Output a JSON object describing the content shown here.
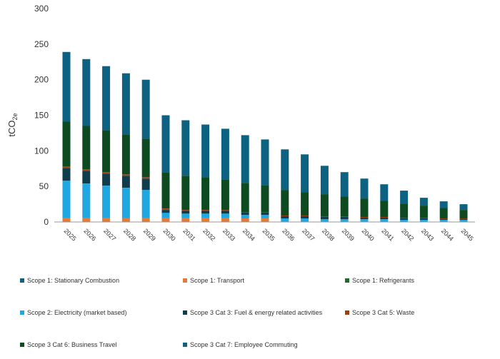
{
  "chart_data": {
    "type": "bar",
    "stacked": true,
    "ylabel": "tCO2e",
    "ylabel_main": "tCO",
    "ylabel_sub": "2e",
    "ylim": [
      0,
      300
    ],
    "yticks": [
      0,
      50,
      100,
      150,
      200,
      250,
      300
    ],
    "grid": false,
    "legend_position": "bottom",
    "categories": [
      "2025",
      "2026",
      "2027",
      "2028",
      "2029",
      "2030",
      "2031",
      "2032",
      "2033",
      "2034",
      "2035",
      "2036",
      "2037",
      "2038",
      "2039",
      "2040",
      "2041",
      "2042",
      "2043",
      "2044",
      "2045"
    ],
    "series": [
      {
        "name": "Scope 1: Transport",
        "color": "#e07b39",
        "values": [
          6,
          6,
          6,
          6,
          6,
          6,
          6,
          6,
          6,
          5,
          5,
          0,
          0,
          0,
          0,
          0,
          0,
          0,
          0,
          0,
          0
        ]
      },
      {
        "name": "Scope 2: Electricity (market based)",
        "color": "#1ea7e1",
        "values": [
          52,
          48,
          45,
          42,
          39,
          7,
          6,
          6,
          6,
          5,
          5,
          5,
          5,
          4,
          4,
          4,
          4,
          3,
          3,
          3,
          3
        ]
      },
      {
        "name": "Scope 3 Cat 3: Fuel & energy related activities",
        "color": "#0f3d4c",
        "values": [
          18,
          18,
          17,
          17,
          16,
          4,
          4,
          4,
          4,
          3,
          3,
          3,
          3,
          3,
          3,
          2,
          2,
          2,
          2,
          1,
          1
        ]
      },
      {
        "name": "Scope 3 Cat 5: Waste",
        "color": "#9c3f12",
        "values": [
          2,
          2,
          2,
          2,
          2,
          2,
          1,
          1,
          1,
          1,
          1,
          1,
          1,
          1,
          1,
          1,
          1,
          1,
          1,
          1,
          1
        ]
      },
      {
        "name": "Scope 3 Cat 6: Business Travel",
        "color": "#0d4a1f",
        "values": [
          63,
          61,
          59,
          56,
          54,
          51,
          48,
          46,
          43,
          41,
          38,
          36,
          33,
          31,
          28,
          26,
          23,
          20,
          17,
          15,
          12
        ]
      },
      {
        "name": "Scope 3 Cat 7: Employee Commuting",
        "color": "#0e6281",
        "values": [
          98,
          94,
          90,
          86,
          83,
          80,
          78,
          74,
          71,
          67,
          64,
          57,
          53,
          40,
          34,
          28,
          23,
          18,
          11,
          9,
          8
        ]
      }
    ]
  },
  "legend": [
    {
      "label": "Scope 1: Stationary Combustion",
      "color": "#0e6281"
    },
    {
      "label": "Scope 1: Transport",
      "color": "#e07b39"
    },
    {
      "label": "Scope 1: Refrigerants",
      "color": "#1e6b2e"
    },
    {
      "label": "Scope 2: Electricity (market based)",
      "color": "#1ea7e1"
    },
    {
      "label": "Scope 3 Cat 3: Fuel & energy related activities",
      "color": "#0f3d4c"
    },
    {
      "label": "Scope 3 Cat 5: Waste",
      "color": "#9c3f12"
    },
    {
      "label": "Scope 3 Cat 6: Business Travel",
      "color": "#0d4a1f"
    },
    {
      "label": "Scope 3 Cat 7: Employee Commuting",
      "color": "#0e6281"
    }
  ]
}
